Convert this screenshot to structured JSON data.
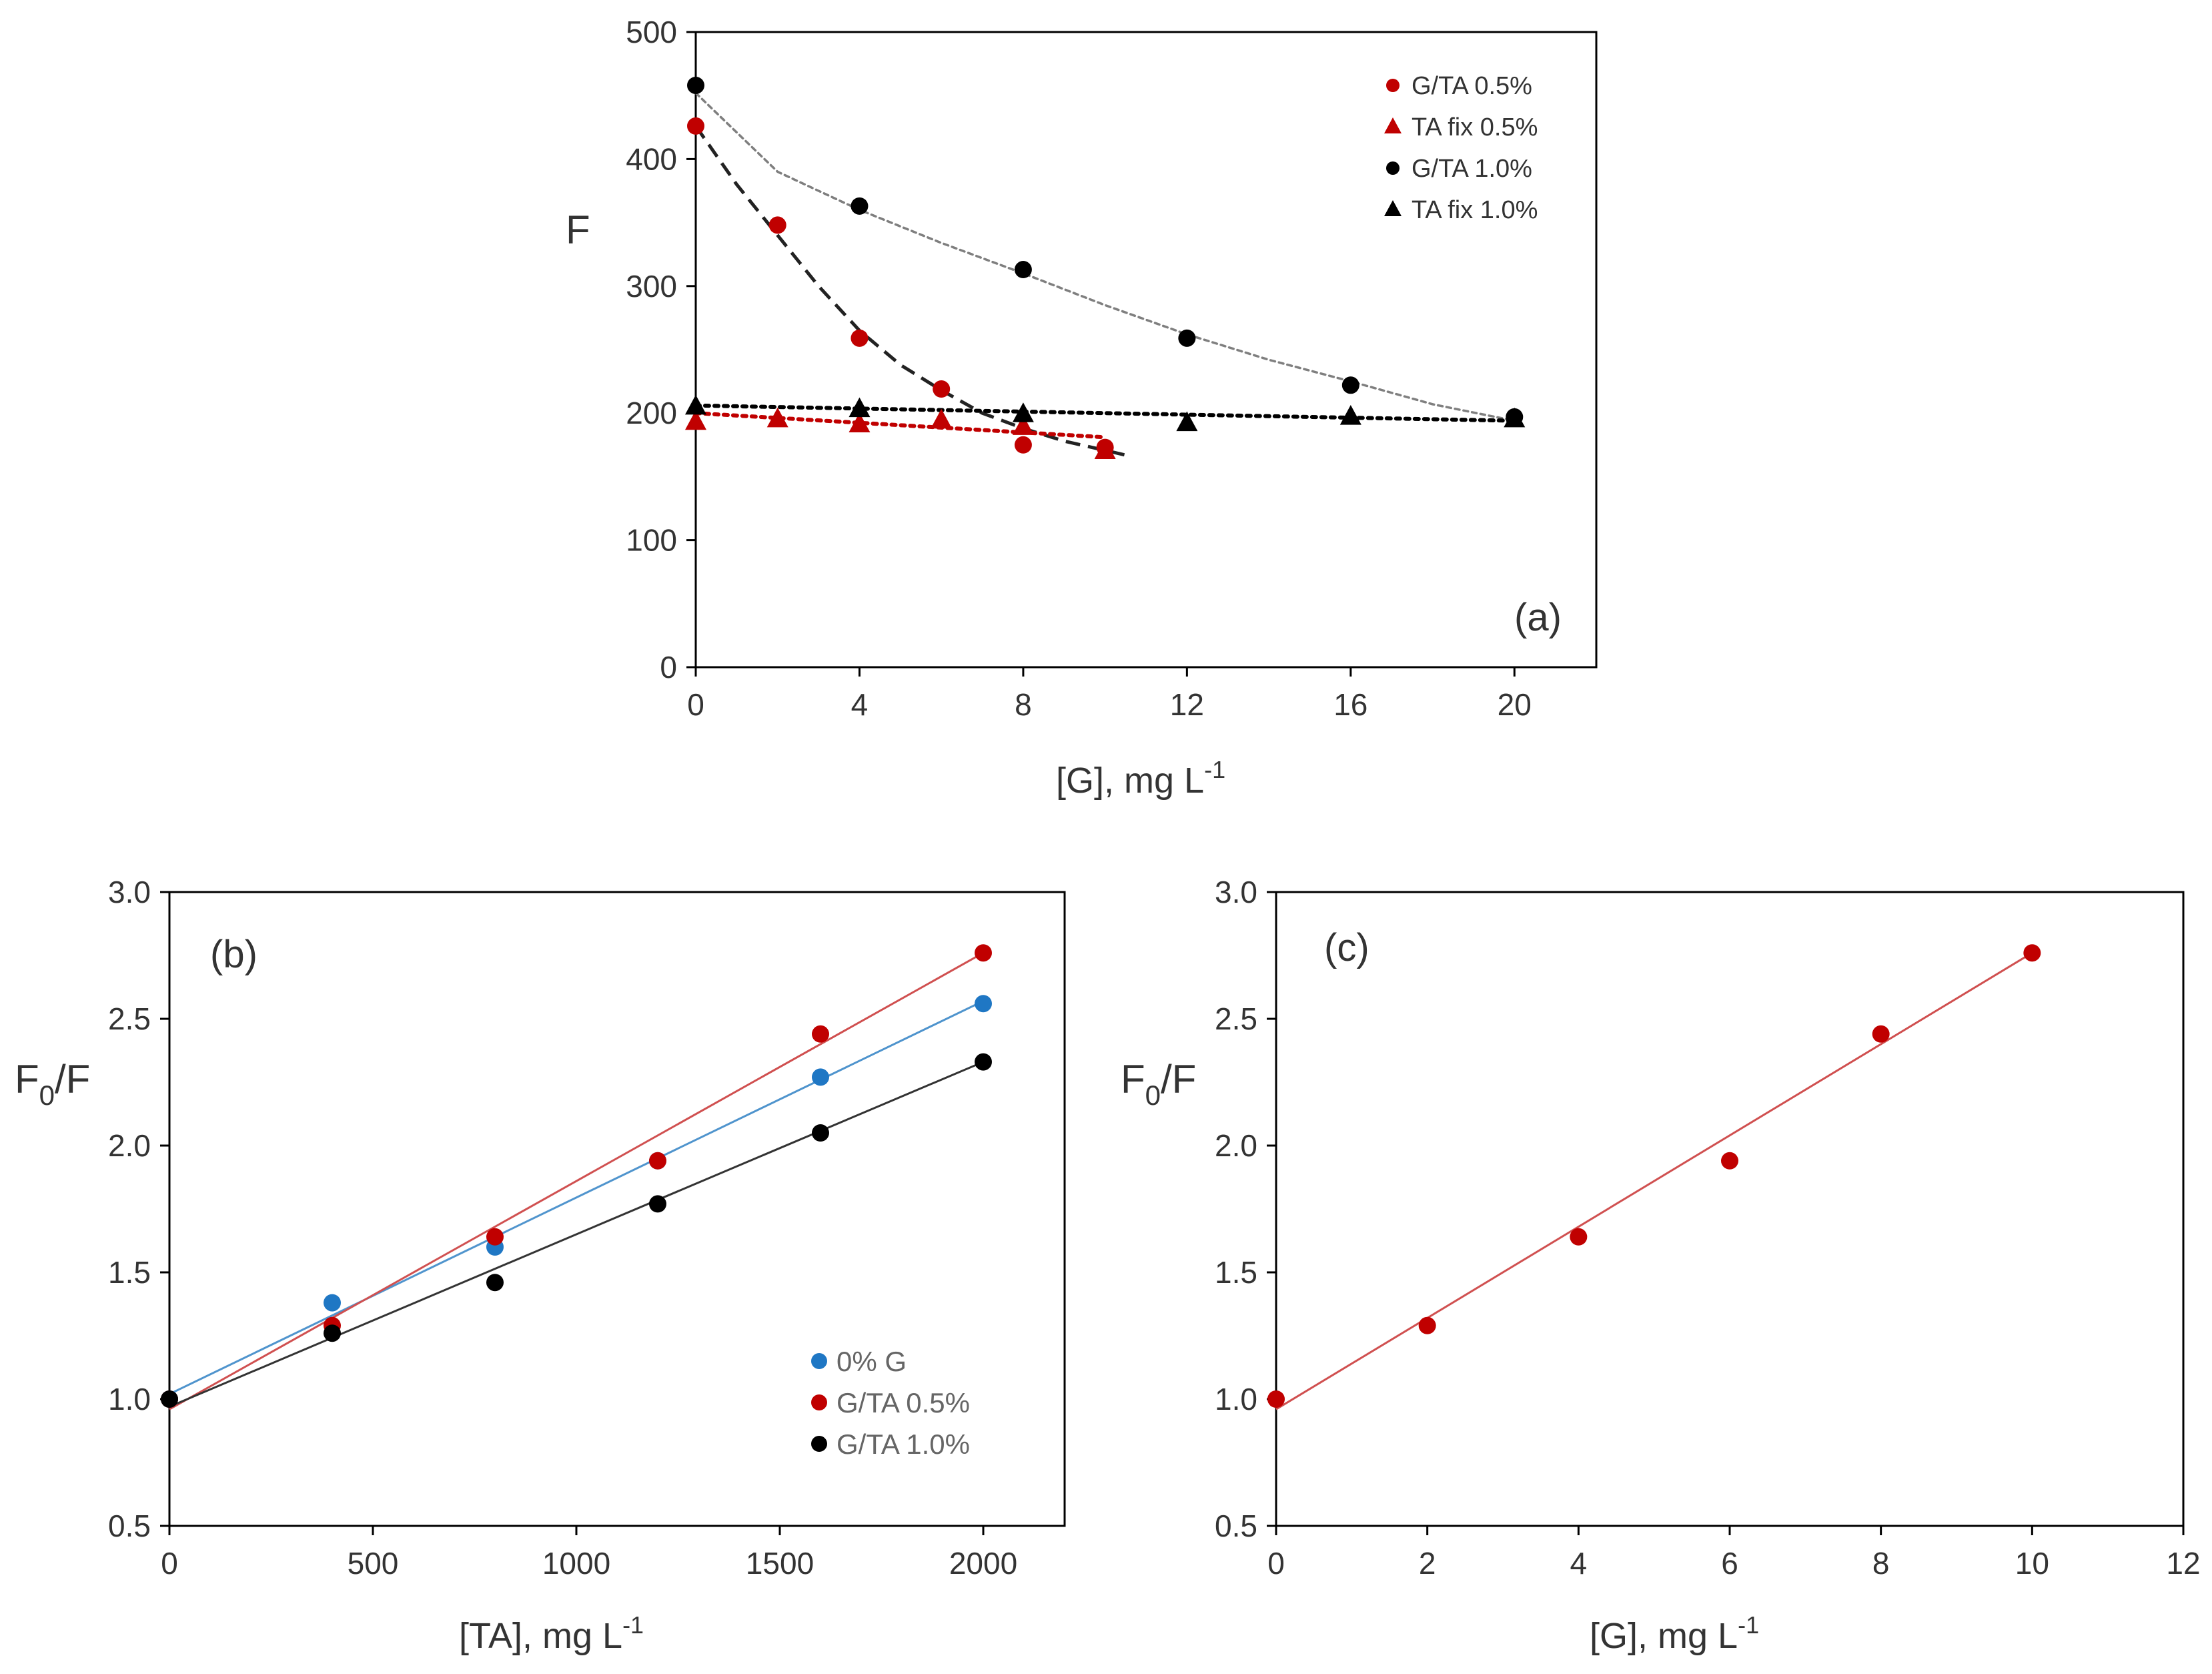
{
  "chart_data": [
    {
      "id": "a",
      "type": "scatter",
      "panel_label": "(a)",
      "xlabel": "[G], mg L",
      "xlabel_sup": "-1",
      "ylabel": "F",
      "xlim": [
        0,
        22
      ],
      "ylim": [
        0,
        500
      ],
      "xticks": [
        "0",
        "4",
        "8",
        "12",
        "16",
        "20"
      ],
      "xtick_values": [
        0,
        4,
        8,
        12,
        16,
        20
      ],
      "yticks": [
        "0",
        "100",
        "200",
        "300",
        "400",
        "500"
      ],
      "ytick_values": [
        0,
        100,
        200,
        300,
        400,
        500
      ],
      "legend_position": "top-right",
      "series": [
        {
          "name": "G/TA 0.5%",
          "marker": "circle",
          "color": "#c00000",
          "x": [
            0,
            2,
            4,
            6,
            8,
            10
          ],
          "y": [
            426,
            348,
            259,
            219,
            175,
            173
          ],
          "fit": {
            "style": "dashed",
            "color": "#222222",
            "x": [
              0,
              1,
              2,
              3,
              4,
              5,
              6,
              7,
              8,
              9,
              10.5
            ],
            "y": [
              426,
              380,
              340,
              300,
              265,
              238,
              218,
              200,
              188,
              178,
              167
            ]
          }
        },
        {
          "name": "TA fix 0.5%",
          "marker": "triangle",
          "color": "#c00000",
          "x": [
            0,
            2,
            4,
            6,
            8,
            10
          ],
          "y": [
            194,
            196,
            192,
            195,
            190,
            171
          ],
          "fit": {
            "style": "dotted",
            "color": "#c00000",
            "x": [
              0,
              10
            ],
            "y": [
              200,
              181
            ]
          }
        },
        {
          "name": "G/TA 1.0%",
          "marker": "circle",
          "color": "#000000",
          "x": [
            0,
            4,
            8,
            12,
            16,
            20
          ],
          "y": [
            458,
            363,
            313,
            259,
            222,
            197
          ],
          "fit": {
            "style": "dotted-fine",
            "color": "#7f7f7f",
            "x": [
              0,
              2,
              4,
              6,
              8,
              10,
              12,
              14,
              16,
              18,
              20
            ],
            "y": [
              452,
              390,
              360,
              334,
              310,
              285,
              262,
              242,
              225,
              207,
              194
            ]
          }
        },
        {
          "name": "TA fix 1.0%",
          "marker": "triangle",
          "color": "#000000",
          "x": [
            0,
            4,
            8,
            12,
            16,
            20
          ],
          "y": [
            206,
            204,
            200,
            193,
            198,
            196
          ],
          "fit": {
            "style": "dotted",
            "color": "#000000",
            "x": [
              0,
              20
            ],
            "y": [
              206,
              194
            ]
          }
        }
      ]
    },
    {
      "id": "b",
      "type": "scatter",
      "panel_label": "(b)",
      "xlabel": "[TA], mg L",
      "xlabel_sup": "-1",
      "ylabel": "F",
      "ylabel_sub": "0",
      "ylabel_tail": "/F",
      "xlim": [
        0,
        2200
      ],
      "ylim": [
        0.5,
        3.0
      ],
      "xticks": [
        "0",
        "500",
        "1000",
        "1500",
        "2000"
      ],
      "xtick_values": [
        0,
        500,
        1000,
        1500,
        2000
      ],
      "yticks": [
        "0.5",
        "1.0",
        "1.5",
        "2.0",
        "2.5",
        "3.0"
      ],
      "ytick_values": [
        0.5,
        1.0,
        1.5,
        2.0,
        2.5,
        3.0
      ],
      "legend_position": "bottom-right",
      "series": [
        {
          "name": "0% G",
          "marker": "circle",
          "color": "#1f77c4",
          "x": [
            0,
            400,
            800,
            1200,
            1600,
            2000
          ],
          "y": [
            1.0,
            1.38,
            1.6,
            1.94,
            2.27,
            2.56
          ],
          "fit": {
            "style": "solid",
            "color": "#4f94cd",
            "x": [
              0,
              2000
            ],
            "y": [
              1.02,
              2.57
            ]
          }
        },
        {
          "name": "G/TA 0.5%",
          "marker": "circle",
          "color": "#c00000",
          "x": [
            0,
            400,
            800,
            1200,
            1600,
            2000
          ],
          "y": [
            1.0,
            1.29,
            1.64,
            1.94,
            2.44,
            2.76
          ],
          "fit": {
            "style": "solid",
            "color": "#d05050",
            "x": [
              0,
              2000
            ],
            "y": [
              0.96,
              2.76
            ]
          }
        },
        {
          "name": "G/TA 1.0%",
          "marker": "circle",
          "color": "#000000",
          "x": [
            0,
            400,
            800,
            1200,
            1600,
            2000
          ],
          "y": [
            1.0,
            1.26,
            1.46,
            1.77,
            2.05,
            2.33
          ],
          "fit": {
            "style": "solid",
            "color": "#333333",
            "x": [
              0,
              2000
            ],
            "y": [
              0.97,
              2.33
            ]
          }
        }
      ]
    },
    {
      "id": "c",
      "type": "scatter",
      "panel_label": "(c)",
      "xlabel": "[G], mg L",
      "xlabel_sup": "-1",
      "ylabel": "F",
      "ylabel_sub": "0",
      "ylabel_tail": "/F",
      "xlim": [
        0,
        12
      ],
      "ylim": [
        0.5,
        3.0
      ],
      "xticks": [
        "0",
        "2",
        "4",
        "6",
        "8",
        "10",
        "12"
      ],
      "xtick_values": [
        0,
        2,
        4,
        6,
        8,
        10,
        12
      ],
      "yticks": [
        "0.5",
        "1.0",
        "1.5",
        "2.0",
        "2.5",
        "3.0"
      ],
      "ytick_values": [
        0.5,
        1.0,
        1.5,
        2.0,
        2.5,
        3.0
      ],
      "series": [
        {
          "name": "G/TA 0.5%",
          "marker": "circle",
          "color": "#c00000",
          "x": [
            0,
            2,
            4,
            6,
            8,
            10
          ],
          "y": [
            1.0,
            1.29,
            1.64,
            1.94,
            2.44,
            2.76
          ],
          "fit": {
            "style": "solid",
            "color": "#d05050",
            "x": [
              0,
              10
            ],
            "y": [
              0.96,
              2.76
            ]
          }
        }
      ]
    }
  ]
}
